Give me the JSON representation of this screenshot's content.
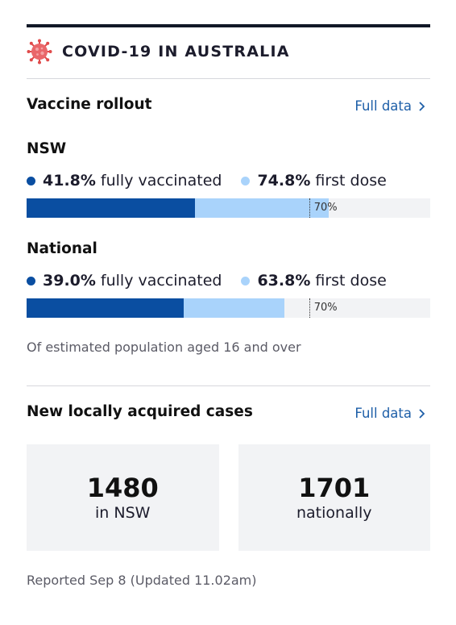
{
  "header": {
    "title": "COVID-19 IN AUSTRALIA",
    "icon": "virus-icon",
    "icon_color": "#e04a4a"
  },
  "vaccine": {
    "title": "Vaccine rollout",
    "full_data_label": "Full data",
    "regions": [
      {
        "name": "NSW",
        "fully_value": "41.8%",
        "fully_label": "fully vaccinated",
        "first_value": "74.8%",
        "first_label": "first dose",
        "fully_pct": 41.8,
        "first_pct": 74.8,
        "target_pct": 70,
        "target_label": "70%"
      },
      {
        "name": "National",
        "fully_value": "39.0%",
        "fully_label": "fully vaccinated",
        "first_value": "63.8%",
        "first_label": "first dose",
        "fully_pct": 39.0,
        "first_pct": 63.8,
        "target_pct": 70,
        "target_label": "70%"
      }
    ],
    "note": "Of estimated population aged 16 and over",
    "colors": {
      "fully": "#0a4ea1",
      "first": "#a9d3fb",
      "track": "#f2f3f5"
    }
  },
  "cases": {
    "title": "New locally acquired cases",
    "full_data_label": "Full data",
    "items": [
      {
        "number": "1480",
        "label": "in NSW"
      },
      {
        "number": "1701",
        "label": "nationally"
      }
    ],
    "reported": "Reported Sep 8 (Updated 11.02am)"
  }
}
